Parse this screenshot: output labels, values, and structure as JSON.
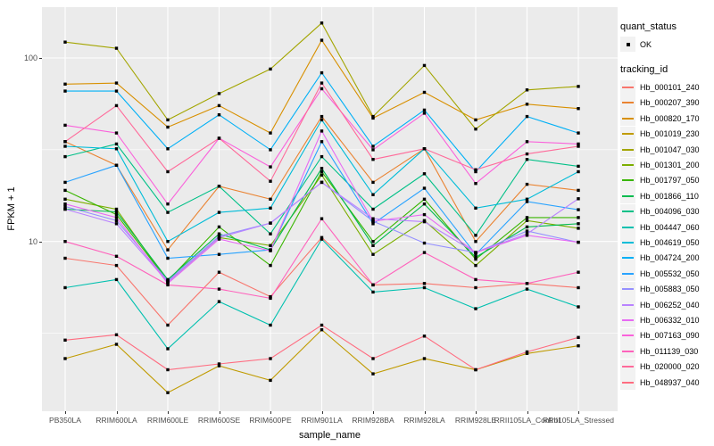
{
  "figure": {
    "x_axis_title": "sample_name",
    "y_axis_title": "FPKM + 1"
  },
  "legend": {
    "quant_status": {
      "title": "quant_status",
      "items": [
        {
          "label": "OK",
          "marker": "black-point"
        }
      ]
    },
    "tracking_id": {
      "title": "tracking_id"
    }
  },
  "colors": {
    "panel_bg": "#EBEBEB",
    "gridline": "#FFFFFF",
    "legend_key_bg": "#F2F2F2",
    "tick_text": "#4D4D4D",
    "point": "#000000"
  },
  "chart_data": {
    "type": "line",
    "title": "",
    "xlabel": "sample_name",
    "ylabel": "FPKM + 1",
    "y_scale": "log10",
    "ylim": [
      1.19,
      190
    ],
    "y_major_ticks": [
      100,
      10
    ],
    "y_tick_labels": [
      "100",
      "10"
    ],
    "y_minor_gridlines": [
      31.62,
      3.162
    ],
    "grid": true,
    "legend_position": "right",
    "point_shape": "filled-black-square",
    "categories": [
      "PB350LA",
      "RRIM600LA",
      "RRIM600LE",
      "RRIM600SE",
      "RRIM600PE",
      "RRIM901LA",
      "RRIM928BA",
      "RRIM928LA",
      "RRIM928LE",
      "RRII105LA_Control",
      "RRII105LA_Stressed"
    ],
    "series": [
      {
        "name": "Hb_000101_240",
        "color": "#F8766D",
        "values": [
          8.1,
          7.4,
          3.5,
          6.8,
          5.0,
          10.5,
          5.8,
          5.9,
          5.6,
          5.9,
          5.6
        ]
      },
      {
        "name": "Hb_000207_390",
        "color": "#EA8331",
        "values": [
          35,
          26,
          9,
          20,
          17,
          48,
          21,
          32,
          10,
          20.5,
          19
        ]
      },
      {
        "name": "Hb_000820_170",
        "color": "#D89000",
        "values": [
          72,
          73,
          42,
          55,
          39,
          125,
          47,
          65,
          46,
          56,
          53
        ]
      },
      {
        "name": "Hb_001019_230",
        "color": "#C09B00",
        "values": [
          2.3,
          2.75,
          1.5,
          2.1,
          1.75,
          3.3,
          1.9,
          2.3,
          2.0,
          2.45,
          2.7
        ]
      },
      {
        "name": "Hb_001047_030",
        "color": "#A3A500",
        "values": [
          122,
          113,
          46,
          64,
          87,
          155,
          48,
          91,
          41,
          67,
          70
        ]
      },
      {
        "name": "Hb_001301_200",
        "color": "#7CAE00",
        "values": [
          17,
          15,
          6.0,
          10.5,
          9.5,
          23,
          8.5,
          13,
          7.4,
          13,
          11.8
        ]
      },
      {
        "name": "Hb_001797_050",
        "color": "#39B600",
        "values": [
          19,
          14,
          6.1,
          12,
          7.4,
          24,
          10,
          17,
          8.0,
          13.5,
          13.5
        ]
      },
      {
        "name": "Hb_001866_110",
        "color": "#00BB4E",
        "values": [
          15,
          14.5,
          6.2,
          11,
          9.0,
          25,
          9.5,
          16,
          8.2,
          12,
          12.5
        ]
      },
      {
        "name": "Hb_004096_030",
        "color": "#00C087",
        "values": [
          29,
          34,
          14.4,
          20,
          11,
          29,
          15,
          23.4,
          10.8,
          28,
          25.7
        ]
      },
      {
        "name": "Hb_004447_060",
        "color": "#00C0AF",
        "values": [
          5.6,
          6.2,
          2.6,
          4.7,
          3.5,
          10.3,
          5.3,
          5.6,
          4.3,
          5.5,
          4.4
        ]
      },
      {
        "name": "Hb_004619_050",
        "color": "#00BCD8",
        "values": [
          33,
          32,
          10,
          14.4,
          15.2,
          46,
          18,
          32,
          15.2,
          17,
          24
        ]
      },
      {
        "name": "Hb_004724_200",
        "color": "#00B0F6",
        "values": [
          66,
          66,
          32,
          49,
          31.6,
          83,
          33,
          52,
          24,
          48,
          39
        ]
      },
      {
        "name": "Hb_005532_050",
        "color": "#29A3FF",
        "values": [
          21,
          26,
          8.1,
          8.5,
          9.0,
          35,
          12.5,
          19.5,
          8.5,
          16.5,
          14.9
        ]
      },
      {
        "name": "Hb_005883_050",
        "color": "#9590FF",
        "values": [
          15.5,
          13,
          6.1,
          10.7,
          12.6,
          21,
          12.9,
          9.8,
          8.7,
          11.4,
          9.9
        ]
      },
      {
        "name": "Hb_006252_040",
        "color": "#B983FF",
        "values": [
          15,
          12.5,
          6.0,
          10.5,
          12.6,
          21,
          13.3,
          12.8,
          8.7,
          11,
          17.1
        ]
      },
      {
        "name": "Hb_006332_010",
        "color": "#E76BF3",
        "values": [
          16,
          13.5,
          5.9,
          10.3,
          8.9,
          40,
          12.9,
          14,
          8.7,
          10.8,
          9.9
        ]
      },
      {
        "name": "Hb_007163_090",
        "color": "#FA62DB",
        "values": [
          43,
          39,
          16,
          36.5,
          25.5,
          68,
          31.6,
          50,
          20.7,
          35,
          34
        ]
      },
      {
        "name": "Hb_011139_030",
        "color": "#FF62BC",
        "values": [
          10,
          8.3,
          5.8,
          5.5,
          4.9,
          13.3,
          5.8,
          8.7,
          6.2,
          5.9,
          6.8
        ]
      },
      {
        "name": "Hb_020000_020",
        "color": "#FF6A9A",
        "values": [
          35,
          55,
          24,
          36.5,
          21.3,
          73,
          28,
          32,
          24.6,
          30,
          33
        ]
      },
      {
        "name": "Hb_048937_040",
        "color": "#FF6C80",
        "values": [
          2.9,
          3.1,
          2.0,
          2.15,
          2.3,
          3.5,
          2.3,
          3.05,
          2.0,
          2.5,
          3.0
        ]
      }
    ]
  }
}
